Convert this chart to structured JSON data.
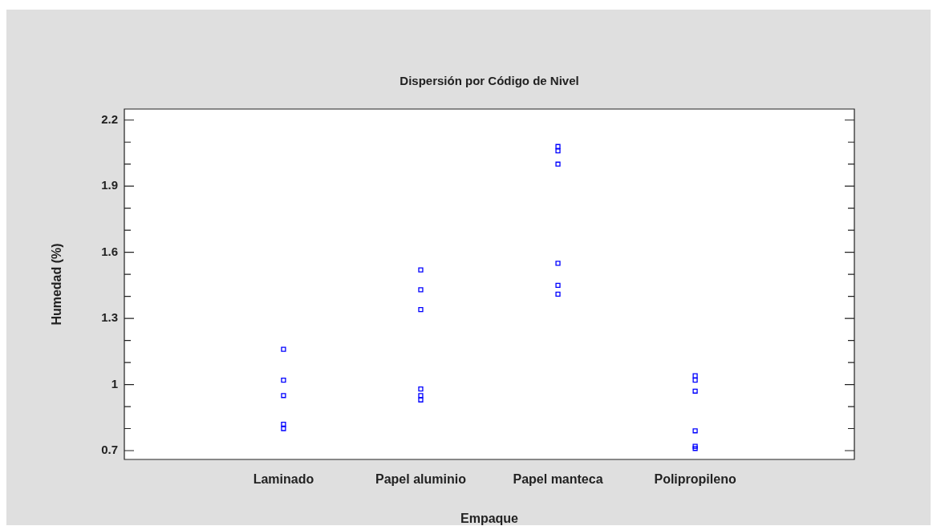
{
  "chart_data": {
    "type": "scatter",
    "title": "Dispersión por Código de Nivel",
    "xlabel": "Empaque",
    "ylabel": "Humedad (%)",
    "categories": [
      "Laminado",
      "Papel aluminio",
      "Papel manteca",
      "Polipropileno"
    ],
    "series": [
      {
        "color": "#0000ff",
        "x": [
          "Laminado",
          "Laminado",
          "Laminado",
          "Laminado",
          "Laminado",
          "Papel aluminio",
          "Papel aluminio",
          "Papel aluminio",
          "Papel aluminio",
          "Papel aluminio",
          "Papel aluminio",
          "Papel manteca",
          "Papel manteca",
          "Papel manteca",
          "Papel manteca",
          "Papel manteca",
          "Papel manteca",
          "Polipropileno",
          "Polipropileno",
          "Polipropileno",
          "Polipropileno",
          "Polipropileno",
          "Polipropileno"
        ],
        "values": [
          1.16,
          1.02,
          0.95,
          0.82,
          0.8,
          1.52,
          1.43,
          1.34,
          0.98,
          0.95,
          0.93,
          2.08,
          2.06,
          2.0,
          1.55,
          1.45,
          1.41,
          1.04,
          1.02,
          0.97,
          0.79,
          0.72,
          0.71
        ]
      }
    ],
    "ylim": [
      0.66,
      2.25
    ],
    "yticks": [
      0.7,
      {
        "value": 0.8,
        "label": null
      },
      {
        "value": 0.9,
        "label": null
      },
      1,
      {
        "value": 1.1,
        "label": null
      },
      {
        "value": 1.2,
        "label": null
      },
      1.3,
      {
        "value": 1.4,
        "label": null
      },
      {
        "value": 1.5,
        "label": null
      },
      1.6,
      {
        "value": 1.7,
        "label": null
      },
      {
        "value": 1.8,
        "label": null
      },
      1.9,
      {
        "value": 2.0,
        "label": null
      },
      {
        "value": 2.1,
        "label": null
      },
      2.2
    ],
    "marker": "square",
    "grid": false,
    "legend": false
  }
}
